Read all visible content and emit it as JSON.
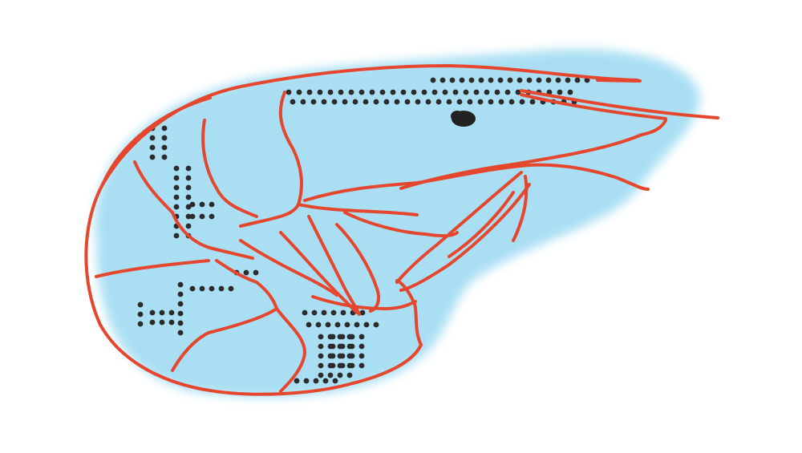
{
  "illustration": {
    "subject": "shrimp",
    "style": "hand-drawn",
    "colors": {
      "background": "#ffffff",
      "wash": "#a6def3",
      "outline": "#e5472e",
      "dots": "#2b2b2b",
      "eye": "#222222"
    }
  }
}
